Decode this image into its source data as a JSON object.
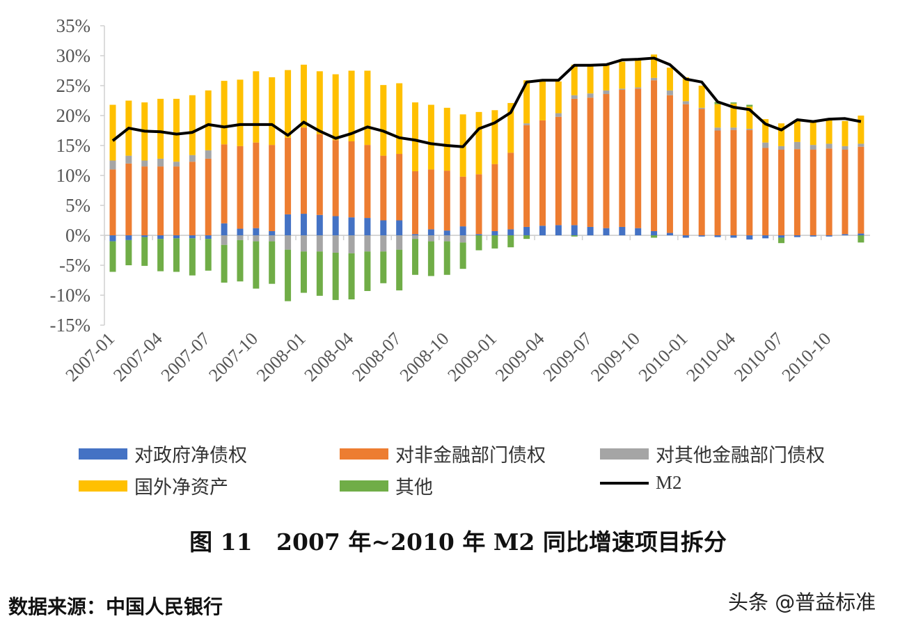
{
  "chart_data": {
    "type": "bar",
    "stacked": true,
    "title": "图 11   2007 年~2010 年 M2 同比增速项目拆分",
    "source": "数据来源：中国人民银行",
    "watermark": "头条 @普益标准",
    "ylim": [
      -15,
      35
    ],
    "yticks": [
      "35%",
      "30%",
      "25%",
      "20%",
      "15%",
      "10%",
      "5%",
      "0%",
      "-5%",
      "-10%",
      "-15%"
    ],
    "ytick_values": [
      35,
      30,
      25,
      20,
      15,
      10,
      5,
      0,
      -5,
      -10,
      -15
    ],
    "xtick_labels": [
      "2007-01",
      "2007-04",
      "2007-07",
      "2007-10",
      "2008-01",
      "2008-04",
      "2008-07",
      "2008-10",
      "2009-01",
      "2009-04",
      "2009-07",
      "2009-10",
      "2010-01",
      "2010-04",
      "2010-07",
      "2010-10"
    ],
    "xtick_every": 3,
    "months": 48,
    "legend_position": "bottom",
    "series": [
      {
        "name": "对政府净债权",
        "color": "#4472C4",
        "values": [
          -1,
          -0.8,
          -0.3,
          -0.6,
          -0.5,
          -0.5,
          -0.6,
          2,
          1.1,
          1.2,
          0.7,
          3.5,
          3.6,
          3.4,
          3.2,
          3,
          2.9,
          2.5,
          2.5,
          0.2,
          1,
          0.8,
          1.5,
          0.2,
          0.7,
          1,
          1.4,
          1.6,
          1.7,
          1.7,
          1.4,
          1.2,
          1.4,
          1.2,
          0.7,
          0.4,
          -0.4,
          -0.2,
          -0.3,
          -0.4,
          -0.7,
          -0.5,
          -0.4,
          -0.3,
          -0.2,
          -0.2,
          0.2,
          0.3
        ]
      },
      {
        "name": "对非金融部门债权",
        "color": "#ED7D31",
        "values": [
          11,
          12,
          11.5,
          11.5,
          11.5,
          12.3,
          12.8,
          13.2,
          13.8,
          14.3,
          14.4,
          12.8,
          14.4,
          13.5,
          12.7,
          12.7,
          12.2,
          10.8,
          11.1,
          10.5,
          10,
          10,
          8.3,
          10,
          11.2,
          12.8,
          17,
          17.6,
          18.1,
          21.1,
          21.6,
          22.4,
          22.9,
          23.3,
          25.2,
          23,
          21.9,
          21.1,
          17.5,
          17.6,
          17.6,
          14.6,
          14.3,
          14.4,
          14.3,
          14.5,
          14.1,
          14.5
        ]
      },
      {
        "name": "对其他金融部门债权",
        "color": "#A5A5A5",
        "values": [
          1.5,
          1.3,
          1,
          1.3,
          0.8,
          1.1,
          1.4,
          -1.6,
          -0.8,
          -1,
          -1,
          -2.4,
          -2.7,
          -2.7,
          -2.9,
          -3,
          -2.7,
          -2.7,
          -2.4,
          -0.6,
          -1,
          -1,
          -1.2,
          0,
          0,
          0,
          0.3,
          0,
          0.6,
          0.6,
          0.7,
          0.6,
          0.2,
          0.2,
          0.4,
          0.8,
          0.5,
          0.2,
          0.5,
          0.4,
          0.2,
          0.9,
          0.6,
          1.2,
          0.8,
          0.8,
          0.6,
          0.5
        ]
      },
      {
        "name": "国外净资产",
        "color": "#FFC000",
        "values": [
          9.3,
          9.2,
          9.7,
          10,
          10.5,
          10,
          10,
          10.6,
          11.1,
          11.9,
          11.3,
          11.3,
          10.5,
          10.5,
          11,
          11.8,
          12.4,
          11.8,
          11.8,
          11.5,
          10.8,
          10.5,
          10.4,
          10.4,
          9,
          8.3,
          7.2,
          6.5,
          5.3,
          5.1,
          4.6,
          4.3,
          4.5,
          4.7,
          3.9,
          3.8,
          4,
          3.7,
          3.9,
          4,
          3.7,
          3.9,
          3.8,
          3.6,
          3.9,
          4,
          4.2,
          4.7
        ]
      },
      {
        "name": "其他",
        "color": "#70AD47",
        "values": [
          -5.1,
          -4.2,
          -4.8,
          -5.4,
          -5.6,
          -6.2,
          -5.3,
          -6.3,
          -6.9,
          -7.9,
          -7.1,
          -8.6,
          -6.9,
          -7.4,
          -7.9,
          -7.7,
          -6.6,
          -5.3,
          -6.8,
          -6,
          -5.8,
          -5.6,
          -4.4,
          -2.5,
          -2.2,
          -2,
          -0.6,
          0,
          0,
          -0.2,
          0,
          0,
          0,
          0,
          -0.4,
          0,
          0,
          0,
          0.4,
          0.2,
          0.3,
          0,
          -0.9,
          0,
          0,
          0,
          0,
          -1.2
        ]
      }
    ],
    "line": {
      "name": "M2",
      "color": "#000000",
      "values": [
        15.8,
        17.9,
        17.4,
        17.3,
        16.9,
        17.2,
        18.5,
        18.1,
        18.5,
        18.5,
        18.5,
        16.7,
        18.9,
        17.4,
        16.2,
        17,
        18.1,
        17.4,
        16.3,
        15.9,
        15.3,
        15,
        14.8,
        17.8,
        18.8,
        20.5,
        25.6,
        25.9,
        25.9,
        28.4,
        28.4,
        28.5,
        29.3,
        29.4,
        29.6,
        28.5,
        26.1,
        25.6,
        22.3,
        21.4,
        21,
        18.6,
        17.6,
        19.3,
        19,
        19.4,
        19.5,
        19
      ]
    }
  }
}
